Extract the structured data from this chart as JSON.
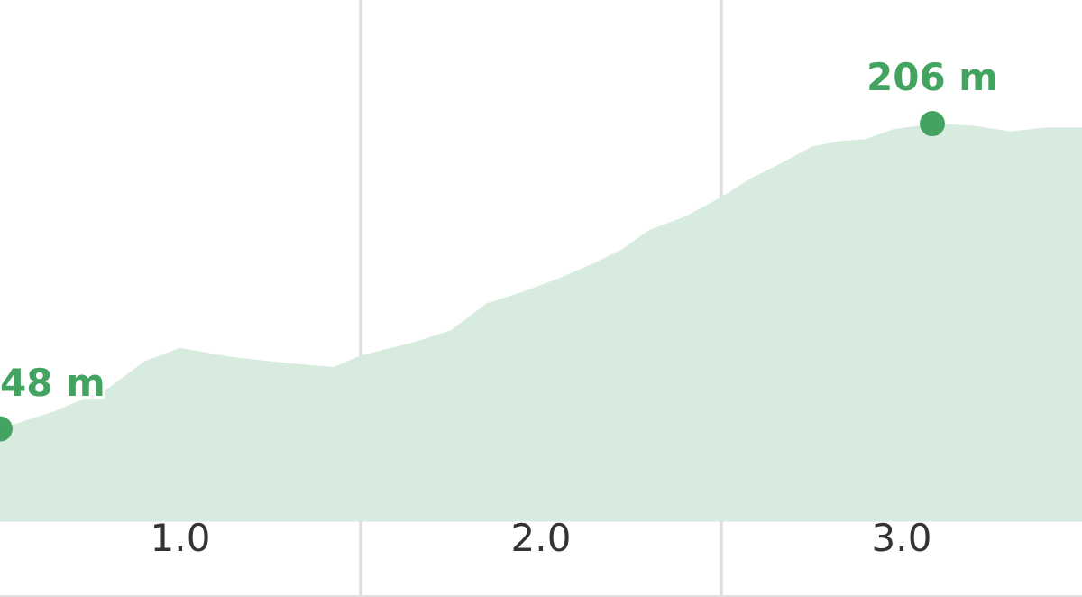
{
  "chart_data": {
    "type": "area",
    "x": [
      0.5,
      0.65,
      0.8,
      0.9,
      1.0,
      1.15,
      1.3,
      1.425,
      1.5,
      1.65,
      1.75,
      1.85,
      1.95,
      2.05,
      2.15,
      2.225,
      2.3,
      2.4,
      2.5,
      2.575,
      2.65,
      2.75,
      2.825,
      2.9,
      2.975,
      3.085,
      3.2,
      3.3,
      3.4,
      3.5
    ],
    "series": [
      {
        "color": "#d7ebdf",
        "values": [
          48,
          57,
          69,
          83,
          90,
          85,
          82,
          80,
          86,
          93,
          99,
          113,
          119,
          126,
          134,
          141,
          151,
          158,
          168,
          177,
          184,
          194,
          197,
          198,
          203,
          206,
          205,
          202,
          204,
          204
        ],
        "value_labels": [
          "48 m",
          null,
          null,
          null,
          null,
          null,
          null,
          null,
          null,
          null,
          null,
          null,
          null,
          null,
          null,
          null,
          null,
          null,
          null,
          null,
          null,
          null,
          null,
          null,
          null,
          "206 m",
          null,
          null,
          null,
          null
        ]
      }
    ],
    "xlim": [
      0.5,
      3.5
    ],
    "xticks": [
      {
        "value": 1,
        "label": "1.0"
      },
      {
        "value": 2,
        "label": "2.0"
      },
      {
        "value": 3,
        "label": "3.0"
      }
    ],
    "ylim": [
      -39,
      270
    ],
    "tick_labels": "x",
    "ref_lines": [
      {
        "axis": "x",
        "value": 1.5,
        "color": "#e2e2e2"
      },
      {
        "axis": "x",
        "value": 2.5,
        "color": "#e2e2e2"
      }
    ]
  }
}
